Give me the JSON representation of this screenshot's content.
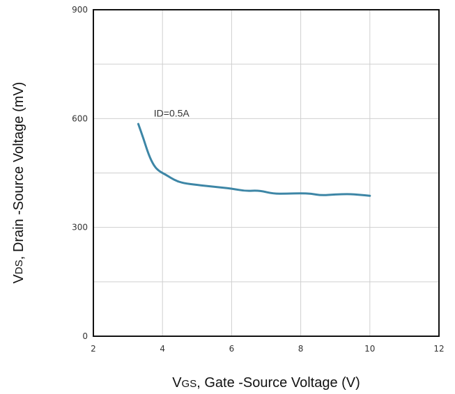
{
  "chart_data": {
    "type": "line",
    "xlabel": {
      "main": "V",
      "sub": "GS",
      "rest": ", Gate -Source Voltage (V)"
    },
    "ylabel": {
      "main": "V",
      "sub": "DS",
      "rest": ", Drain -Source Voltage (mV)"
    },
    "xlim": [
      2,
      12
    ],
    "ylim": [
      0,
      900
    ],
    "xticks": [
      2,
      4,
      6,
      8,
      10,
      12
    ],
    "yticks": [
      0,
      300,
      600,
      900
    ],
    "minor_y_gridlines": [
      150,
      450,
      750
    ],
    "grid": true,
    "annotation": {
      "text": "ID=0.5A",
      "x": 3.75,
      "y": 605
    },
    "series": [
      {
        "color": "#3d86a6",
        "x": [
          3.3,
          3.45,
          3.6,
          3.75,
          3.9,
          4.1,
          4.35,
          4.6,
          5.0,
          5.5,
          6.0,
          6.4,
          6.8,
          7.2,
          7.6,
          8.0,
          8.3,
          8.6,
          9.0,
          9.4,
          9.7,
          10.0
        ],
        "y": [
          585,
          545,
          500,
          470,
          455,
          445,
          430,
          422,
          417,
          412,
          407,
          400,
          402,
          393,
          393,
          394,
          393,
          388,
          391,
          392,
          390,
          387
        ]
      }
    ]
  }
}
